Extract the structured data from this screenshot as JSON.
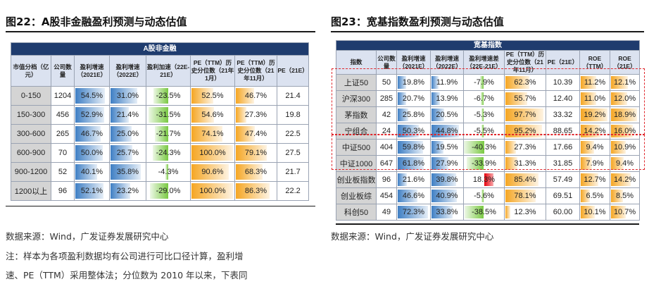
{
  "left": {
    "title": "图22：A股非金融盈利预测与动态估值",
    "caption": "A股非金融",
    "headers": [
      "市值分档（亿元）",
      "公司数量",
      "盈利增速（2021E）",
      "盈利增速（2022E）",
      "盈利加速（22E-21E）",
      "PE（TTM）历史分位数（21年1月）",
      "PE（TTM）历史分位数（21年11月）",
      "PE（21E）"
    ],
    "rows": [
      [
        "0-150",
        "1204",
        "54.5%",
        "31.0%",
        "-23.5%",
        "52.5%",
        "46.7%",
        "21.4"
      ],
      [
        "150-300",
        "456",
        "52.9%",
        "21.4%",
        "-31.5%",
        "54.6%",
        "27.3%",
        "19.8"
      ],
      [
        "300-600",
        "265",
        "46.7%",
        "25.0%",
        "-21.7%",
        "74.1%",
        "47.4%",
        "22.5"
      ],
      [
        "600-900",
        "70",
        "50.0%",
        "25.7%",
        "-24.3%",
        "100.0%",
        "79.1%",
        "27.5"
      ],
      [
        "900-1200",
        "52",
        "40.1%",
        "35.8%",
        "-4.3%",
        "90.6%",
        "68.3%",
        "21.7"
      ],
      [
        "1200以上",
        "96",
        "52.1%",
        "23.2%",
        "-29.0%",
        "100.0%",
        "86.3%",
        "22.2"
      ]
    ],
    "source": "数据来源：Wind，广发证券发展研究中心",
    "note1": "注：样本为各项盈利数据均有公司进行可比口径计算，盈利增",
    "note2": "速、PE（TTM）采用整体法；分位数为 2010 年以来，下表同"
  },
  "right": {
    "title": "图23：宽基指数盈利预测与动态估值",
    "caption": "宽基指数",
    "headers": [
      "指数",
      "公司数量",
      "盈利增速（2021E）",
      "盈利增速（2022E）",
      "盈利增速差（22E-21E）",
      "PE（TTM）历史分位数（21年11月）",
      "PE（21E）",
      "ROE（TTM）",
      "ROE（21E）"
    ],
    "rows": [
      [
        "上证50",
        "50",
        "19.8%",
        "11.9%",
        "-7.9%",
        "62.3%",
        "10.39",
        "11.2%",
        "12.1%"
      ],
      [
        "沪深300",
        "285",
        "20.7%",
        "13.9%",
        "-6.7%",
        "55.7%",
        "12.40",
        "11.0%",
        "12.0%"
      ],
      [
        "茅指数",
        "42",
        "25.8%",
        "20.5%",
        "-5.3%",
        "97.7%",
        "33.32",
        "19.2%",
        "18.9%"
      ],
      [
        "宁组合",
        "24",
        "50.3%",
        "44.8%",
        "-5.5%",
        "95.2%",
        "88.65",
        "14.2%",
        "16.0%"
      ],
      [
        "中证500",
        "404",
        "59.8%",
        "19.5%",
        "-40.3%",
        "27.3%",
        "17.66",
        "9.4%",
        "10.9%"
      ],
      [
        "中证1000",
        "647",
        "61.8%",
        "27.9%",
        "-33.9%",
        "31.3%",
        "31.85",
        "7.9%",
        "9.4%"
      ],
      [
        "创业板指数",
        "96",
        "21.6%",
        "39.8%",
        "18.3%",
        "85.4%",
        "57.49",
        "12.7%",
        "14.2%"
      ],
      [
        "创业板综",
        "454",
        "46.6%",
        "40.9%",
        "-5.6%",
        "78.1%",
        "69.51",
        "6.5%",
        "8.5%"
      ],
      [
        "科创50",
        "49",
        "72.3%",
        "33.8%",
        "-38.5%",
        "12.3%",
        "60.00",
        "10.1%",
        "10.7%"
      ]
    ],
    "source": "数据来源：Wind，广发证券发展研究中心"
  },
  "colors": {
    "blue": "#3f7fc4",
    "green": "#7ac943",
    "red": "#e8000b",
    "orange": "#f5a623",
    "header": "#1f3c6e"
  }
}
